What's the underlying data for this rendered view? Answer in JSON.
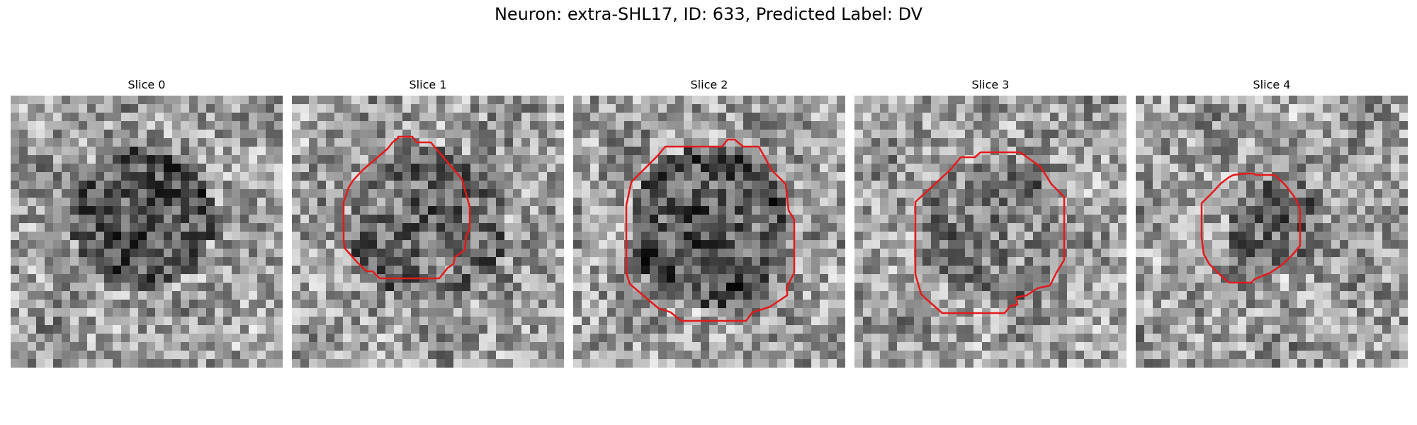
{
  "figure": {
    "title": "Neuron: extra-SHL17, ID: 633, Predicted Label: DV"
  },
  "panels": [
    {
      "title": "Slice 0",
      "has_contour": false
    },
    {
      "title": "Slice 1",
      "has_contour": true
    },
    {
      "title": "Slice 2",
      "has_contour": true
    },
    {
      "title": "Slice 3",
      "has_contour": true
    },
    {
      "title": "Slice 4",
      "has_contour": true
    }
  ],
  "colors": {
    "contour": "#e41a1c",
    "background": "#ffffff"
  },
  "image": {
    "colormap": "gray",
    "grid": "32x32 grayscale pixels"
  }
}
